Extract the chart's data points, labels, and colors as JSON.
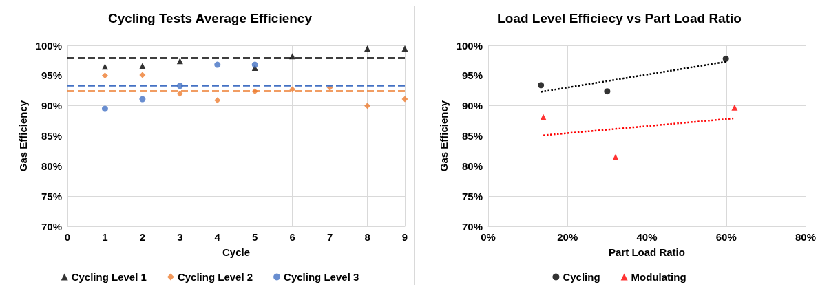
{
  "chart_data": [
    {
      "type": "scatter",
      "title": "Cycling Tests Average Efficiency",
      "xlabel": "Cycle",
      "ylabel": "Gas Efficiency",
      "xlim": [
        0,
        9
      ],
      "xticks": [
        0,
        1,
        2,
        3,
        4,
        5,
        6,
        7,
        8,
        9
      ],
      "ylim": [
        70,
        100
      ],
      "yticks": [
        {
          "value": 70,
          "label": "70%"
        },
        {
          "value": 75,
          "label": "75%"
        },
        {
          "value": 80,
          "label": "80%"
        },
        {
          "value": 85,
          "label": "85%"
        },
        {
          "value": 90,
          "label": "90%"
        },
        {
          "value": 95,
          "label": "95%"
        },
        {
          "value": 100,
          "label": "100%"
        }
      ],
      "grid": true,
      "legend": "bottom",
      "series": [
        {
          "name": "Cycling Level 1",
          "color": "#000000",
          "marker": "triangle",
          "x": [
            1,
            2,
            3,
            5,
            6,
            8,
            9
          ],
          "values": [
            96.5,
            96.6,
            97.4,
            96.3,
            98.2,
            99.5,
            99.5
          ]
        },
        {
          "name": "Cycling Level 2",
          "color": "#ed7d31",
          "marker": "diamond",
          "x": [
            1,
            2,
            3,
            4,
            5,
            6,
            7,
            8,
            9
          ],
          "values": [
            95.0,
            95.1,
            92.0,
            90.9,
            92.4,
            92.7,
            93.0,
            90.0,
            91.1
          ]
        },
        {
          "name": "Cycling Level 3",
          "color": "#4472c4",
          "marker": "circle",
          "x": [
            1,
            2,
            3,
            4,
            5
          ],
          "values": [
            89.5,
            91.1,
            93.3,
            96.8,
            96.8
          ]
        }
      ],
      "ref_lines": [
        {
          "axis": "y",
          "value": 97.9,
          "label": null,
          "color": "#000000",
          "line_style": "dashed"
        },
        {
          "axis": "y",
          "value": 93.4,
          "label": null,
          "color": "#4472c4",
          "line_style": "dashed"
        },
        {
          "axis": "y",
          "value": 92.4,
          "label": null,
          "color": "#ed7d31",
          "line_style": "dashed"
        }
      ]
    },
    {
      "type": "scatter",
      "title": "Load Level Efficiecy vs Part Load Ratio",
      "xlabel": "Part Load Ratio",
      "ylabel": "Gas Efficiency",
      "xlim": [
        0,
        80
      ],
      "xticks": [
        {
          "value": 0,
          "label": "0%"
        },
        {
          "value": 20,
          "label": "20%"
        },
        {
          "value": 40,
          "label": "40%"
        },
        {
          "value": 60,
          "label": "60%"
        },
        {
          "value": 80,
          "label": "80%"
        }
      ],
      "ylim": [
        70,
        100
      ],
      "yticks": [
        {
          "value": 70,
          "label": "70%"
        },
        {
          "value": 75,
          "label": "75%"
        },
        {
          "value": 80,
          "label": "80%"
        },
        {
          "value": 85,
          "label": "85%"
        },
        {
          "value": 90,
          "label": "90%"
        },
        {
          "value": 95,
          "label": "95%"
        },
        {
          "value": 100,
          "label": "100%"
        }
      ],
      "grid": true,
      "legend": "bottom",
      "series": [
        {
          "name": "Cycling",
          "color": "#000000",
          "marker": "circle",
          "x": [
            13.3,
            30.0,
            59.9
          ],
          "values": [
            93.4,
            92.4,
            97.8
          ]
        },
        {
          "name": "Modulating",
          "color": "#ff0000",
          "marker": "triangle",
          "x": [
            13.9,
            32.1,
            62.1
          ],
          "values": [
            88.1,
            81.5,
            89.7
          ]
        },
        {
          "type": "line",
          "color": "#000000",
          "marker": "none",
          "line_style": "dotted",
          "x": [
            13.3,
            60
          ],
          "values": [
            92.3,
            97.3
          ]
        },
        {
          "type": "line",
          "color": "#ff0000",
          "marker": "none",
          "line_style": "dotted",
          "x": [
            13.9,
            61.8
          ],
          "values": [
            85.1,
            87.9
          ]
        }
      ]
    }
  ]
}
